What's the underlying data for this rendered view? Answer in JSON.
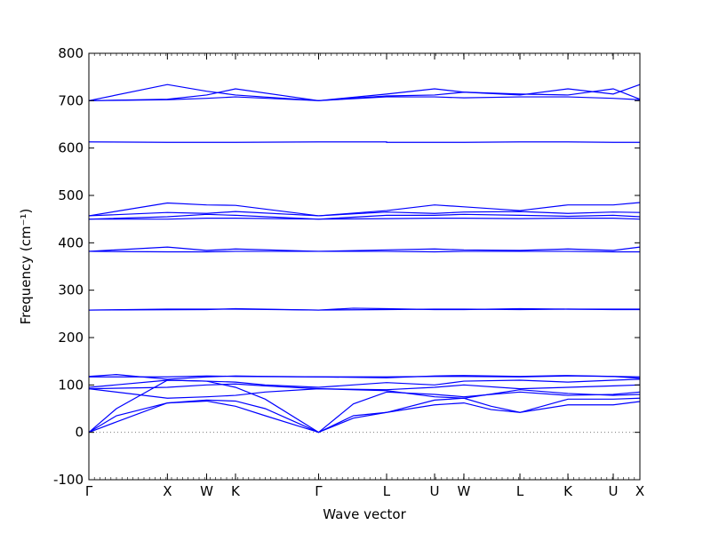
{
  "chart_data": {
    "type": "line",
    "title": "",
    "xlabel": "Wave vector",
    "ylabel": "Frequency (cm⁻¹)",
    "ylim": [
      -100,
      800
    ],
    "yticks": [
      -100,
      0,
      100,
      200,
      300,
      400,
      500,
      600,
      700,
      800
    ],
    "xlim": [
      0,
      1
    ],
    "high_symmetry_points": [
      {
        "label": "Γ",
        "x": 0.0
      },
      {
        "label": "X",
        "x": 0.1425
      },
      {
        "label": "W",
        "x": 0.2137
      },
      {
        "label": "K",
        "x": 0.2661
      },
      {
        "label": "Γ",
        "x": 0.4169
      },
      {
        "label": "L",
        "x": 0.5403
      },
      {
        "label": "U",
        "x": 0.6274
      },
      {
        "label": "W",
        "x": 0.6806
      },
      {
        "label": "L",
        "x": 0.7823
      },
      {
        "label": "K",
        "x": 0.8694
      },
      {
        "label": "U",
        "x": 0.9516
      },
      {
        "label": "X",
        "x": 1.0
      }
    ],
    "zero_line": {
      "y": 0,
      "style": "dotted"
    },
    "grid": false,
    "series_color": "#0000ff",
    "series": [
      {
        "x": [
          0,
          0.05,
          0.1425,
          0.2137,
          0.2661,
          0.32,
          0.4169,
          0.48,
          0.5403,
          0.6274,
          0.6806,
          0.73,
          0.7823,
          0.8694,
          0.9516,
          1.0
        ],
        "y": [
          0,
          22,
          62,
          66,
          55,
          35,
          0,
          30,
          42,
          58,
          62,
          48,
          42,
          58,
          58,
          65
        ]
      },
      {
        "x": [
          0,
          0.05,
          0.1425,
          0.2137,
          0.2661,
          0.32,
          0.4169,
          0.48,
          0.5403,
          0.6274,
          0.6806,
          0.73,
          0.7823,
          0.8694,
          0.9516,
          1.0
        ],
        "y": [
          0,
          35,
          62,
          68,
          66,
          50,
          0,
          35,
          42,
          68,
          72,
          55,
          42,
          70,
          70,
          72
        ]
      },
      {
        "x": [
          0,
          0.05,
          0.1425,
          0.2137,
          0.2661,
          0.32,
          0.4169,
          0.48,
          0.5403,
          0.6274,
          0.6806,
          0.73,
          0.7823,
          0.8694,
          0.9516,
          1.0
        ],
        "y": [
          0,
          50,
          110,
          108,
          95,
          70,
          0,
          60,
          85,
          80,
          75,
          80,
          85,
          78,
          80,
          85
        ]
      },
      {
        "x": [
          0,
          0.1425,
          0.2137,
          0.2661,
          0.32,
          0.4169,
          0.5403,
          0.6274,
          0.6806,
          0.7823,
          0.8694,
          0.9516,
          1.0
        ],
        "y": [
          92,
          72,
          75,
          78,
          85,
          92,
          88,
          75,
          72,
          90,
          82,
          78,
          80
        ]
      },
      {
        "x": [
          0,
          0.1425,
          0.2137,
          0.2661,
          0.32,
          0.4169,
          0.5403,
          0.6274,
          0.6806,
          0.7823,
          0.8694,
          0.9516,
          1.0
        ],
        "y": [
          92,
          95,
          100,
          102,
          98,
          92,
          90,
          95,
          100,
          92,
          95,
          98,
          100
        ]
      },
      {
        "x": [
          0,
          0.1425,
          0.2137,
          0.2661,
          0.32,
          0.4169,
          0.5403,
          0.6274,
          0.6806,
          0.7823,
          0.8694,
          0.9516,
          1.0
        ],
        "y": [
          95,
          110,
          108,
          106,
          100,
          95,
          105,
          100,
          108,
          110,
          106,
          110,
          112
        ]
      },
      {
        "x": [
          0,
          0.05,
          0.1425,
          0.2137,
          0.2661,
          0.32,
          0.4169,
          0.5403,
          0.6274,
          0.6806,
          0.7823,
          0.8694,
          0.9516,
          1.0
        ],
        "y": [
          118,
          122,
          112,
          117,
          119,
          118,
          117,
          115,
          119,
          120,
          118,
          120,
          118,
          114
        ]
      },
      {
        "x": [
          0,
          0.1425,
          0.2137,
          0.2661,
          0.4169,
          0.5403,
          0.6274,
          0.6806,
          0.7823,
          0.8694,
          0.9516,
          1.0
        ],
        "y": [
          117,
          117,
          119,
          118,
          117,
          117,
          118,
          118,
          117,
          119,
          118,
          117
        ]
      },
      {
        "x": [
          0,
          0.1425,
          0.2137,
          0.2661,
          0.4169,
          0.5403,
          0.6274,
          0.6806,
          0.7823,
          0.8694,
          0.9516,
          1.0
        ],
        "y": [
          258,
          260,
          260,
          260,
          258,
          259,
          260,
          260,
          259,
          260,
          260,
          260
        ]
      },
      {
        "x": [
          0,
          0.2137,
          0.2661,
          0.4169,
          0.48,
          0.5403,
          0.6274,
          0.6806,
          0.7823,
          0.8694,
          0.9516,
          1.0
        ],
        "y": [
          258,
          259,
          261,
          258,
          262,
          261,
          259,
          259,
          261,
          260,
          259,
          259
        ]
      },
      {
        "x": [
          0,
          0.1425,
          0.2137,
          0.2661,
          0.4169,
          0.5403,
          0.6274,
          0.6806,
          0.7823,
          0.8694,
          0.9516,
          1.0
        ],
        "y": [
          382,
          391,
          384,
          387,
          382,
          385,
          387,
          385,
          384,
          387,
          384,
          391
        ]
      },
      {
        "x": [
          0,
          0.1425,
          0.2137,
          0.2661,
          0.4169,
          0.5403,
          0.6274,
          0.6806,
          0.7823,
          0.8694,
          0.9516,
          1.0
        ],
        "y": [
          382,
          381,
          381,
          382,
          382,
          382,
          381,
          382,
          382,
          382,
          381,
          381
        ]
      },
      {
        "x": [
          0,
          0.1425,
          0.2137,
          0.2661,
          0.4169,
          0.5403,
          0.6274,
          0.6806,
          0.7823,
          0.8694,
          0.9516,
          1.0
        ],
        "y": [
          457,
          484,
          480,
          479,
          457,
          468,
          480,
          476,
          468,
          480,
          480,
          485
        ]
      },
      {
        "x": [
          0,
          0.1425,
          0.2137,
          0.2661,
          0.4169,
          0.5403,
          0.6274,
          0.6806,
          0.7823,
          0.8694,
          0.9516,
          1.0
        ],
        "y": [
          457,
          464,
          462,
          466,
          457,
          465,
          462,
          465,
          466,
          462,
          465,
          464
        ]
      },
      {
        "x": [
          0,
          0.1425,
          0.2137,
          0.2661,
          0.4169,
          0.5403,
          0.6274,
          0.6806,
          0.7823,
          0.8694,
          0.9516,
          1.0
        ],
        "y": [
          450,
          455,
          460,
          458,
          450,
          458,
          458,
          460,
          458,
          456,
          458,
          455
        ]
      },
      {
        "x": [
          0,
          0.1425,
          0.2137,
          0.2661,
          0.4169,
          0.5403,
          0.6274,
          0.6806,
          0.7823,
          0.8694,
          0.9516,
          1.0
        ],
        "y": [
          450,
          450,
          452,
          452,
          450,
          451,
          452,
          452,
          451,
          452,
          452,
          450
        ]
      },
      {
        "x": [
          0,
          0.1425,
          0.2137,
          0.2661,
          0.4169,
          0.5403,
          0.5403,
          0.6274,
          0.6806,
          0.7823,
          0.8694,
          0.9516,
          1.0
        ],
        "y": [
          613,
          612,
          612,
          612,
          613,
          613,
          612,
          612,
          612,
          613,
          613,
          612,
          612
        ]
      },
      {
        "x": [
          0,
          0.1425,
          0.2137,
          0.2661,
          0.4169,
          0.5403,
          0.6274,
          0.6806,
          0.7823,
          0.8694,
          0.9516,
          1.0
        ],
        "y": [
          700,
          734,
          720,
          712,
          700,
          714,
          725,
          718,
          712,
          725,
          714,
          734
        ]
      },
      {
        "x": [
          0,
          0.1425,
          0.2137,
          0.2661,
          0.4169,
          0.5403,
          0.6274,
          0.6806,
          0.7823,
          0.8694,
          0.9516,
          1.0
        ],
        "y": [
          700,
          703,
          712,
          725,
          700,
          710,
          712,
          718,
          714,
          712,
          725,
          703
        ]
      },
      {
        "x": [
          0,
          0.1425,
          0.2137,
          0.2661,
          0.4169,
          0.5403,
          0.6274,
          0.6806,
          0.7823,
          0.8694,
          0.9516,
          1.0
        ],
        "y": [
          700,
          702,
          705,
          708,
          700,
          708,
          708,
          706,
          708,
          708,
          705,
          702
        ]
      }
    ]
  }
}
